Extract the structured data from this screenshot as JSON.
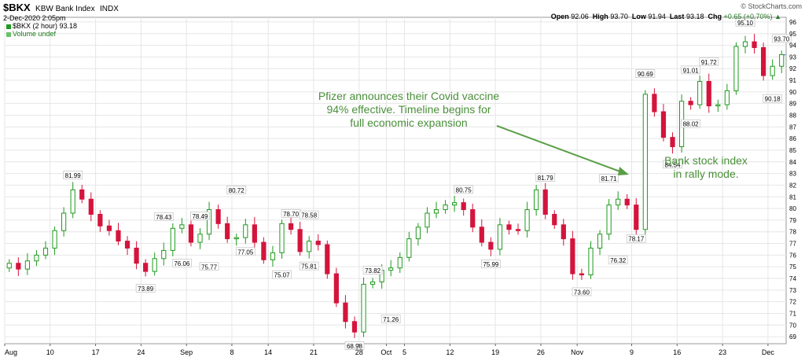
{
  "header": {
    "symbol": "$BKX",
    "name": "KBW Bank Index",
    "exchange": "INDX",
    "datetime": "2-Dec-2020 2:05pm",
    "brand": "© StockCharts.com",
    "open_label": "Open",
    "open": "92.06",
    "high_label": "High",
    "high": "93.70",
    "low_label": "Low",
    "low": "91.94",
    "last_label": "Last",
    "last": "93.18",
    "chg_label": "Chg",
    "chg": "+0.65 (+0.70%)",
    "chg_arrow": "▲"
  },
  "legend": {
    "price": "$BKX (2 hour) 93.18",
    "volume": "Volume undef"
  },
  "annotations": {
    "pfizer": [
      "Pfizer announces their Covid vaccine",
      "94% effective.  Timeline begins for",
      "full economic expansion"
    ],
    "rally": [
      "Bank stock index",
      "in rally mode."
    ]
  },
  "colors": {
    "up": "#1f9a1f",
    "down": "#d4143c",
    "arrow": "#5a9e47",
    "grid": "#e6e6e6"
  },
  "chart_data": {
    "type": "candlestick",
    "interval": "2 hour",
    "ylim": [
      68.4,
      96.4
    ],
    "y_ticks": [
      69,
      70,
      71,
      72,
      73,
      74,
      75,
      76,
      77,
      78,
      79,
      80,
      81,
      82,
      83,
      84,
      85,
      86,
      87,
      88,
      89,
      90,
      91,
      92,
      93,
      94,
      95,
      96
    ],
    "x_ticks": [
      {
        "label": "Aug",
        "i": 0
      },
      {
        "label": "10",
        "i": 5
      },
      {
        "label": "17",
        "i": 10
      },
      {
        "label": "24",
        "i": 15
      },
      {
        "label": "Sep",
        "i": 20
      },
      {
        "label": "8",
        "i": 25
      },
      {
        "label": "14",
        "i": 29
      },
      {
        "label": "21",
        "i": 34
      },
      {
        "label": "28",
        "i": 39
      },
      {
        "label": "Oct",
        "i": 42
      },
      {
        "label": "5",
        "i": 44
      },
      {
        "label": "12",
        "i": 49
      },
      {
        "label": "19",
        "i": 54
      },
      {
        "label": "26",
        "i": 59
      },
      {
        "label": "Nov",
        "i": 63
      },
      {
        "label": "9",
        "i": 69
      },
      {
        "label": "16",
        "i": 74
      },
      {
        "label": "23",
        "i": 79
      },
      {
        "label": "Dec",
        "i": 84
      }
    ],
    "close_series": [
      75.3,
      74.8,
      75.5,
      76.0,
      76.6,
      78.1,
      79.6,
      81.6,
      80.8,
      79.5,
      78.5,
      78.1,
      77.2,
      76.6,
      75.3,
      74.6,
      75.7,
      76.4,
      78.3,
      78.6,
      77.1,
      77.8,
      79.9,
      78.7,
      77.4,
      77.5,
      78.6,
      77.1,
      75.6,
      76.2,
      78.7,
      78.2,
      76.3,
      77.2,
      76.9,
      74.4,
      71.9,
      70.3,
      69.4,
      73.5,
      73.7,
      74.7,
      74.9,
      75.8,
      77.4,
      78.4,
      79.6,
      79.9,
      80.3,
      80.5,
      79.9,
      78.4,
      77.1,
      76.5,
      78.6,
      78.2,
      78.1,
      79.9,
      81.6,
      79.5,
      78.6,
      77.4,
      74.4,
      74.3,
      76.6,
      77.8,
      80.3,
      80.8,
      80.3,
      78.2,
      89.8,
      88.3,
      86.1,
      85.3,
      89.2,
      88.9,
      90.9,
      88.8,
      88.9,
      90.1,
      93.9,
      94.3,
      93.8,
      91.4,
      92.2,
      93.2
    ],
    "pivot_labels": [
      {
        "text": "81.99",
        "i": 7,
        "value": 81.99,
        "pos": "above"
      },
      {
        "text": "73.89",
        "i": 15,
        "value": 73.89,
        "pos": "below"
      },
      {
        "text": "78.43",
        "i": 17,
        "value": 78.43,
        "pos": "above"
      },
      {
        "text": "76.06",
        "i": 19,
        "value": 76.06,
        "pos": "below"
      },
      {
        "text": "78.49",
        "i": 21,
        "value": 78.49,
        "pos": "above"
      },
      {
        "text": "75.77",
        "i": 22,
        "value": 75.77,
        "pos": "below"
      },
      {
        "text": "80.72",
        "i": 25,
        "value": 80.72,
        "pos": "above"
      },
      {
        "text": "77.05",
        "i": 26,
        "value": 77.05,
        "pos": "below"
      },
      {
        "text": "75.07",
        "i": 30,
        "value": 75.07,
        "pos": "below"
      },
      {
        "text": "78.70",
        "i": 31,
        "value": 78.7,
        "pos": "above"
      },
      {
        "text": "78.58",
        "i": 33,
        "value": 78.58,
        "pos": "above"
      },
      {
        "text": "75.81",
        "i": 33,
        "value": 75.81,
        "pos": "below"
      },
      {
        "text": "68.98",
        "i": 38,
        "value": 68.98,
        "pos": "below"
      },
      {
        "text": "73.82",
        "i": 40,
        "value": 73.82,
        "pos": "above"
      },
      {
        "text": "71.26",
        "i": 42,
        "value": 71.26,
        "pos": "below"
      },
      {
        "text": "80.75",
        "i": 50,
        "value": 80.75,
        "pos": "above"
      },
      {
        "text": "75.99",
        "i": 53,
        "value": 75.99,
        "pos": "below"
      },
      {
        "text": "81.79",
        "i": 59,
        "value": 81.79,
        "pos": "above"
      },
      {
        "text": "73.60",
        "i": 63,
        "value": 73.6,
        "pos": "below"
      },
      {
        "text": "81.71",
        "i": 66,
        "value": 81.71,
        "pos": "above"
      },
      {
        "text": "76.32",
        "i": 67,
        "value": 76.32,
        "pos": "below"
      },
      {
        "text": "78.17",
        "i": 69,
        "value": 78.17,
        "pos": "below"
      },
      {
        "text": "90.69",
        "i": 70,
        "value": 90.69,
        "pos": "above"
      },
      {
        "text": "84.54",
        "i": 73,
        "value": 84.54,
        "pos": "below"
      },
      {
        "text": "91.01",
        "i": 75,
        "value": 91.01,
        "pos": "above"
      },
      {
        "text": "88.02",
        "i": 75,
        "value": 88.02,
        "pos": "below"
      },
      {
        "text": "91.72",
        "i": 77,
        "value": 91.72,
        "pos": "above"
      },
      {
        "text": "95.10",
        "i": 81,
        "value": 95.1,
        "pos": "above"
      },
      {
        "text": "90.18",
        "i": 84,
        "value": 90.18,
        "pos": "below"
      },
      {
        "text": "93.70",
        "i": 85,
        "value": 93.7,
        "pos": "above"
      }
    ],
    "last_price": 93.18,
    "grid": true
  }
}
